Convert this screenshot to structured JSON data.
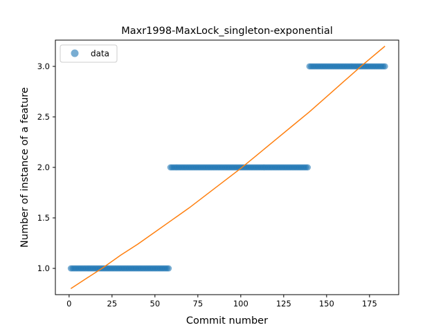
{
  "chart_data": {
    "type": "scatter",
    "title": "Maxr1998-MaxLock_singleton-exponential",
    "xlabel": "Commit number",
    "ylabel": "Number of instance of a feature",
    "xlim": [
      -8,
      192
    ],
    "ylim": [
      0.74,
      3.26
    ],
    "xticks": [
      0,
      25,
      50,
      75,
      100,
      125,
      150,
      175
    ],
    "xtick_labels": [
      "0",
      "25",
      "50",
      "75",
      "100",
      "125",
      "150",
      "175"
    ],
    "yticks": [
      1.0,
      1.5,
      2.0,
      2.5,
      3.0
    ],
    "ytick_labels": [
      "1.0",
      "1.5",
      "2.0",
      "2.5",
      "3.0"
    ],
    "grid": false,
    "legend": {
      "placement": "top-left",
      "entries": [
        "data"
      ]
    },
    "series": [
      {
        "name": "data",
        "kind": "scatter",
        "color": "#1f77b4",
        "alpha": 0.6,
        "segments": [
          {
            "x_start": 1,
            "x_end": 58,
            "y": 1.0
          },
          {
            "x_start": 59,
            "x_end": 139,
            "y": 2.0
          },
          {
            "x_start": 140,
            "x_end": 184,
            "y": 3.0
          }
        ]
      },
      {
        "kind": "line",
        "color": "#ff7f0e",
        "x": [
          1,
          10,
          20,
          30,
          40,
          50,
          60,
          70,
          80,
          90,
          100,
          110,
          120,
          130,
          140,
          150,
          160,
          170,
          184
        ],
        "y": [
          0.8,
          0.9,
          1.01,
          1.13,
          1.24,
          1.36,
          1.48,
          1.6,
          1.73,
          1.86,
          1.99,
          2.13,
          2.27,
          2.41,
          2.55,
          2.7,
          2.85,
          3.0,
          3.2
        ]
      }
    ]
  }
}
